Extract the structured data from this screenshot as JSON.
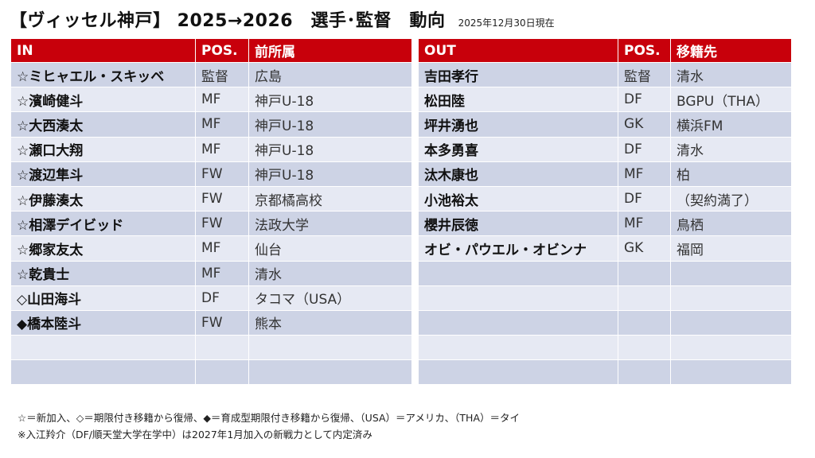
{
  "header": {
    "title": "【ヴィッセル神戸】 2025→2026　選手･監督　動向",
    "date": "2025年12月30日現在"
  },
  "in_table": {
    "headers": [
      "IN",
      "POS.",
      "前所属"
    ],
    "rows": [
      [
        "☆ミヒャエル・スキッベ",
        "監督",
        "広島"
      ],
      [
        "☆濱崎健斗",
        "MF",
        "神戸U-18"
      ],
      [
        "☆大西湊太",
        "MF",
        "神戸U-18"
      ],
      [
        "☆瀬口大翔",
        "MF",
        "神戸U-18"
      ],
      [
        "☆渡辺隼斗",
        "FW",
        "神戸U-18"
      ],
      [
        "☆伊藤湊太",
        "FW",
        "京都橘高校"
      ],
      [
        "☆相澤デイビッド",
        "FW",
        "法政大学"
      ],
      [
        "☆郷家友太",
        "MF",
        "仙台"
      ],
      [
        "☆乾貴士",
        "MF",
        "清水"
      ],
      [
        "◇山田海斗",
        "DF",
        "タコマ（USA）"
      ],
      [
        "◆橋本陸斗",
        "FW",
        "熊本"
      ],
      [
        "",
        "",
        ""
      ],
      [
        "",
        "",
        ""
      ]
    ]
  },
  "out_table": {
    "headers": [
      "OUT",
      "POS.",
      "移籍先"
    ],
    "rows": [
      [
        "吉田孝行",
        "監督",
        "清水"
      ],
      [
        "松田陸",
        "DF",
        "BGPU（THA）"
      ],
      [
        "坪井湧也",
        "GK",
        "横浜FM"
      ],
      [
        "本多勇喜",
        "DF",
        "清水"
      ],
      [
        "汰木康也",
        "MF",
        "柏"
      ],
      [
        "小池裕太",
        "DF",
        "（契約満了）"
      ],
      [
        "櫻井辰徳",
        "MF",
        "鳥栖"
      ],
      [
        "オビ・パウエル・オビンナ",
        "GK",
        "福岡"
      ],
      [
        "",
        "",
        ""
      ],
      [
        "",
        "",
        ""
      ],
      [
        "",
        "",
        ""
      ],
      [
        "",
        "",
        ""
      ],
      [
        "",
        "",
        ""
      ]
    ]
  },
  "notes": {
    "line1": "☆＝新加入、◇＝期限付き移籍から復帰、◆＝育成型期限付き移籍から復帰、（USA）＝アメリカ、（THA）＝タイ",
    "line2": "※入江羚介（DF/順天堂大学在学中）は2027年1月加入の新戦力として内定済み"
  },
  "colors": {
    "header_red": "#c8000b",
    "row_dark": "#cdd3e5",
    "row_light": "#e6e9f3"
  }
}
